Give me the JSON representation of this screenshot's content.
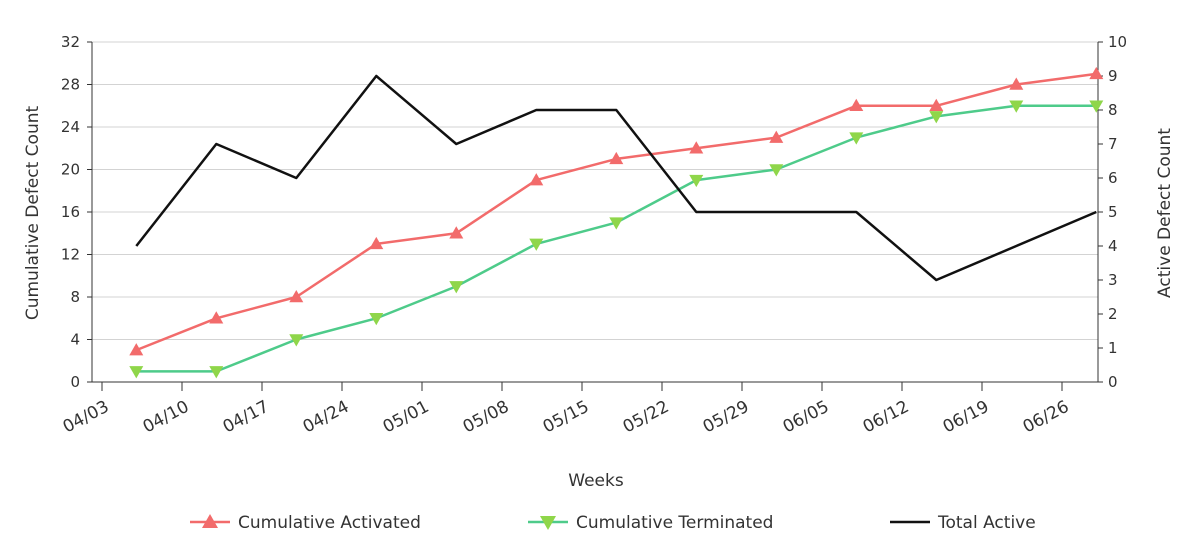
{
  "chart_data": {
    "type": "line",
    "title": "",
    "xlabel": "Weeks",
    "ylabel_left": "Cumulative Defect Count",
    "ylabel_right": "Active Defect Count",
    "x_tick_labels": [
      "04/03",
      "04/10",
      "04/17",
      "04/24",
      "05/01",
      "05/08",
      "05/15",
      "05/22",
      "05/29",
      "06/05",
      "06/12",
      "06/19",
      "06/26"
    ],
    "x_dates": [
      "04/06",
      "04/13",
      "04/20",
      "04/27",
      "05/04",
      "05/11",
      "05/18",
      "05/25",
      "06/01",
      "06/08",
      "06/15",
      "06/22",
      "06/29"
    ],
    "left_axis": {
      "ylim": [
        0,
        32
      ],
      "ticks": [
        0,
        4,
        8,
        12,
        16,
        20,
        24,
        28,
        32
      ]
    },
    "right_axis": {
      "ylim": [
        0,
        10
      ],
      "ticks": [
        0,
        1,
        2,
        3,
        4,
        5,
        6,
        7,
        8,
        9,
        10
      ]
    },
    "grid": true,
    "legend_position": "bottom",
    "series": [
      {
        "name": "Cumulative Activated",
        "axis": "left",
        "color": "#f26b6b",
        "marker": "triangle-up",
        "values": [
          3,
          6,
          8,
          13,
          14,
          19,
          21,
          22,
          23,
          26,
          26,
          28,
          29
        ]
      },
      {
        "name": "Cumulative Terminated",
        "axis": "left",
        "color": "#4ecb8a",
        "marker_color": "#8fd64a",
        "marker": "triangle-down",
        "values": [
          1,
          1,
          4,
          6,
          9,
          13,
          15,
          19,
          20,
          23,
          25,
          26,
          26
        ]
      },
      {
        "name": "Total Active",
        "axis": "right",
        "color": "#111111",
        "marker": "none",
        "values": [
          4,
          7,
          6,
          9,
          7,
          8,
          8,
          5,
          5,
          5,
          3,
          4,
          5
        ]
      }
    ]
  }
}
